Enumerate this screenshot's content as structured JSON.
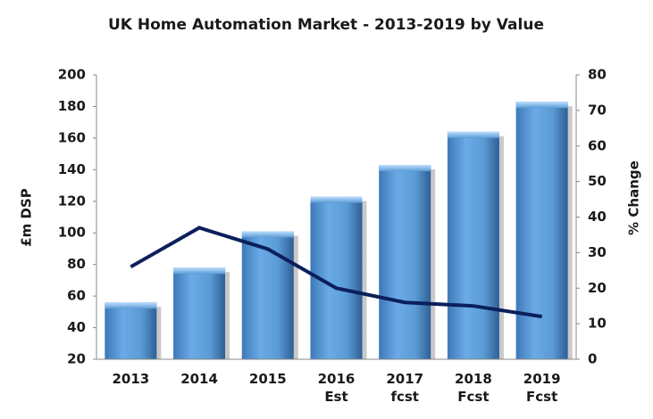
{
  "chart_data": {
    "type": "bar",
    "title": "UK Home Automation Market -  2013-2019 by Value",
    "categories": [
      "2013",
      "2014",
      "2015",
      "2016\nEst",
      "2017\nfcst",
      "2018\nFcst",
      "2019\nFcst"
    ],
    "series": [
      {
        "name": "£m DSP",
        "type": "bar",
        "color": "#5b9bd5",
        "values": [
          56,
          78,
          101,
          123,
          143,
          164,
          183
        ]
      },
      {
        "name": "% Change",
        "type": "line",
        "axis": "y2",
        "color": "#0b1f5c",
        "values": [
          26,
          37,
          31,
          20,
          16,
          15,
          12
        ]
      }
    ],
    "y_label": "£m DSP",
    "y2_label": "% Change",
    "ylim": [
      20,
      200
    ],
    "yticks": [
      20,
      40,
      60,
      80,
      100,
      120,
      140,
      160,
      180,
      200
    ],
    "y2lim": [
      0,
      80
    ],
    "y2ticks": [
      0,
      10,
      20,
      30,
      40,
      50,
      60,
      70,
      80
    ]
  }
}
